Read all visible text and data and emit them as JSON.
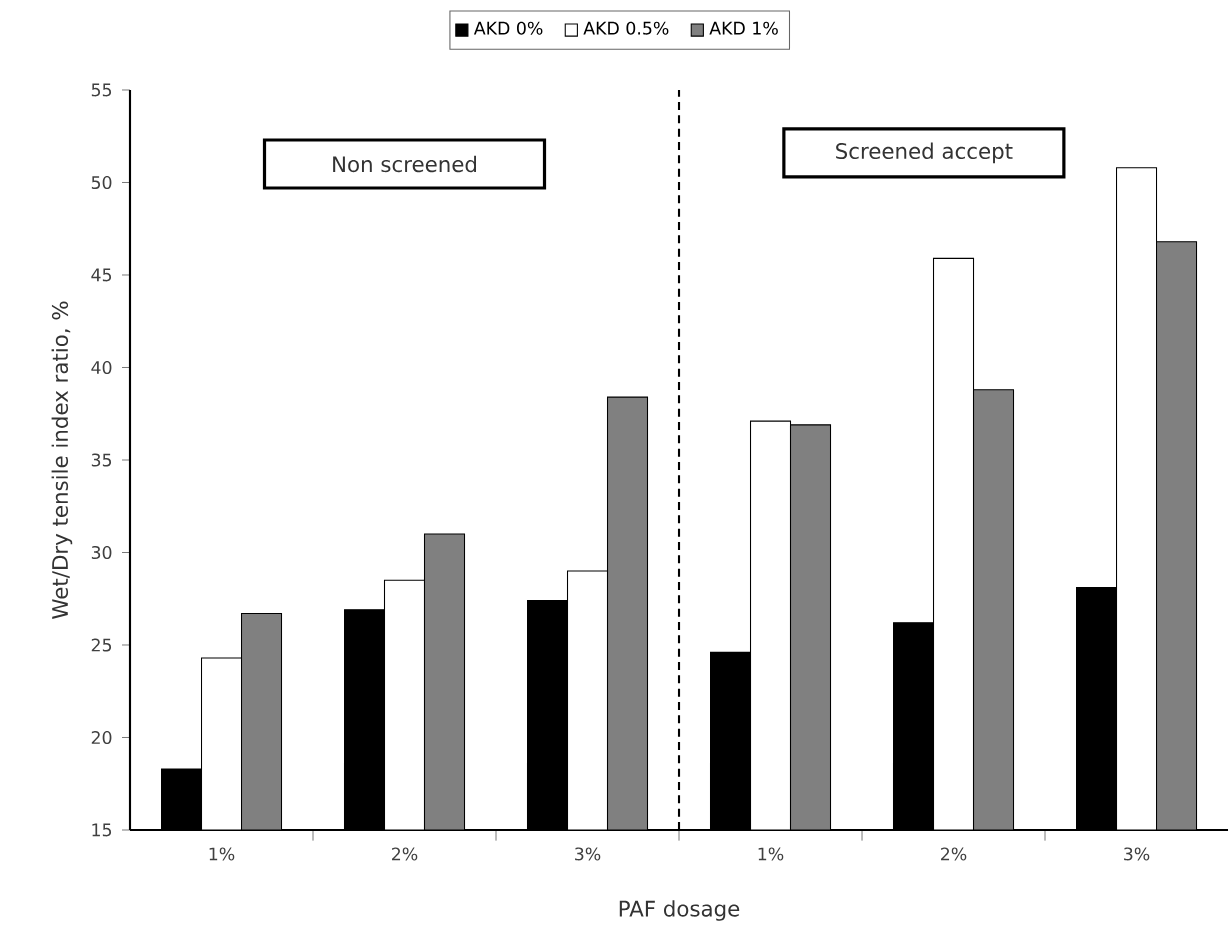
{
  "chart_data": {
    "type": "bar",
    "xlabel": "PAF dosage",
    "ylabel": "Wet/Dry tensile index ratio, %",
    "categories": [
      "1%",
      "2%",
      "3%",
      "1%",
      "2%",
      "3%"
    ],
    "series": [
      {
        "name": "AKD 0%",
        "color": "#000000",
        "values": [
          18.3,
          26.9,
          27.4,
          24.6,
          26.2,
          28.1
        ]
      },
      {
        "name": "AKD 0.5%",
        "color": "#ffffff",
        "values": [
          24.3,
          28.5,
          29.0,
          37.1,
          45.9,
          50.8
        ]
      },
      {
        "name": "AKD 1%",
        "color": "#808080",
        "values": [
          26.7,
          31.0,
          38.4,
          36.9,
          38.8,
          46.8
        ]
      }
    ],
    "ylim": [
      15,
      55
    ],
    "yticks": [
      15,
      20,
      25,
      30,
      35,
      40,
      45,
      50,
      55
    ],
    "annotations": [
      "Non screened",
      "Screened accept"
    ],
    "legend": "top",
    "grid": false
  }
}
